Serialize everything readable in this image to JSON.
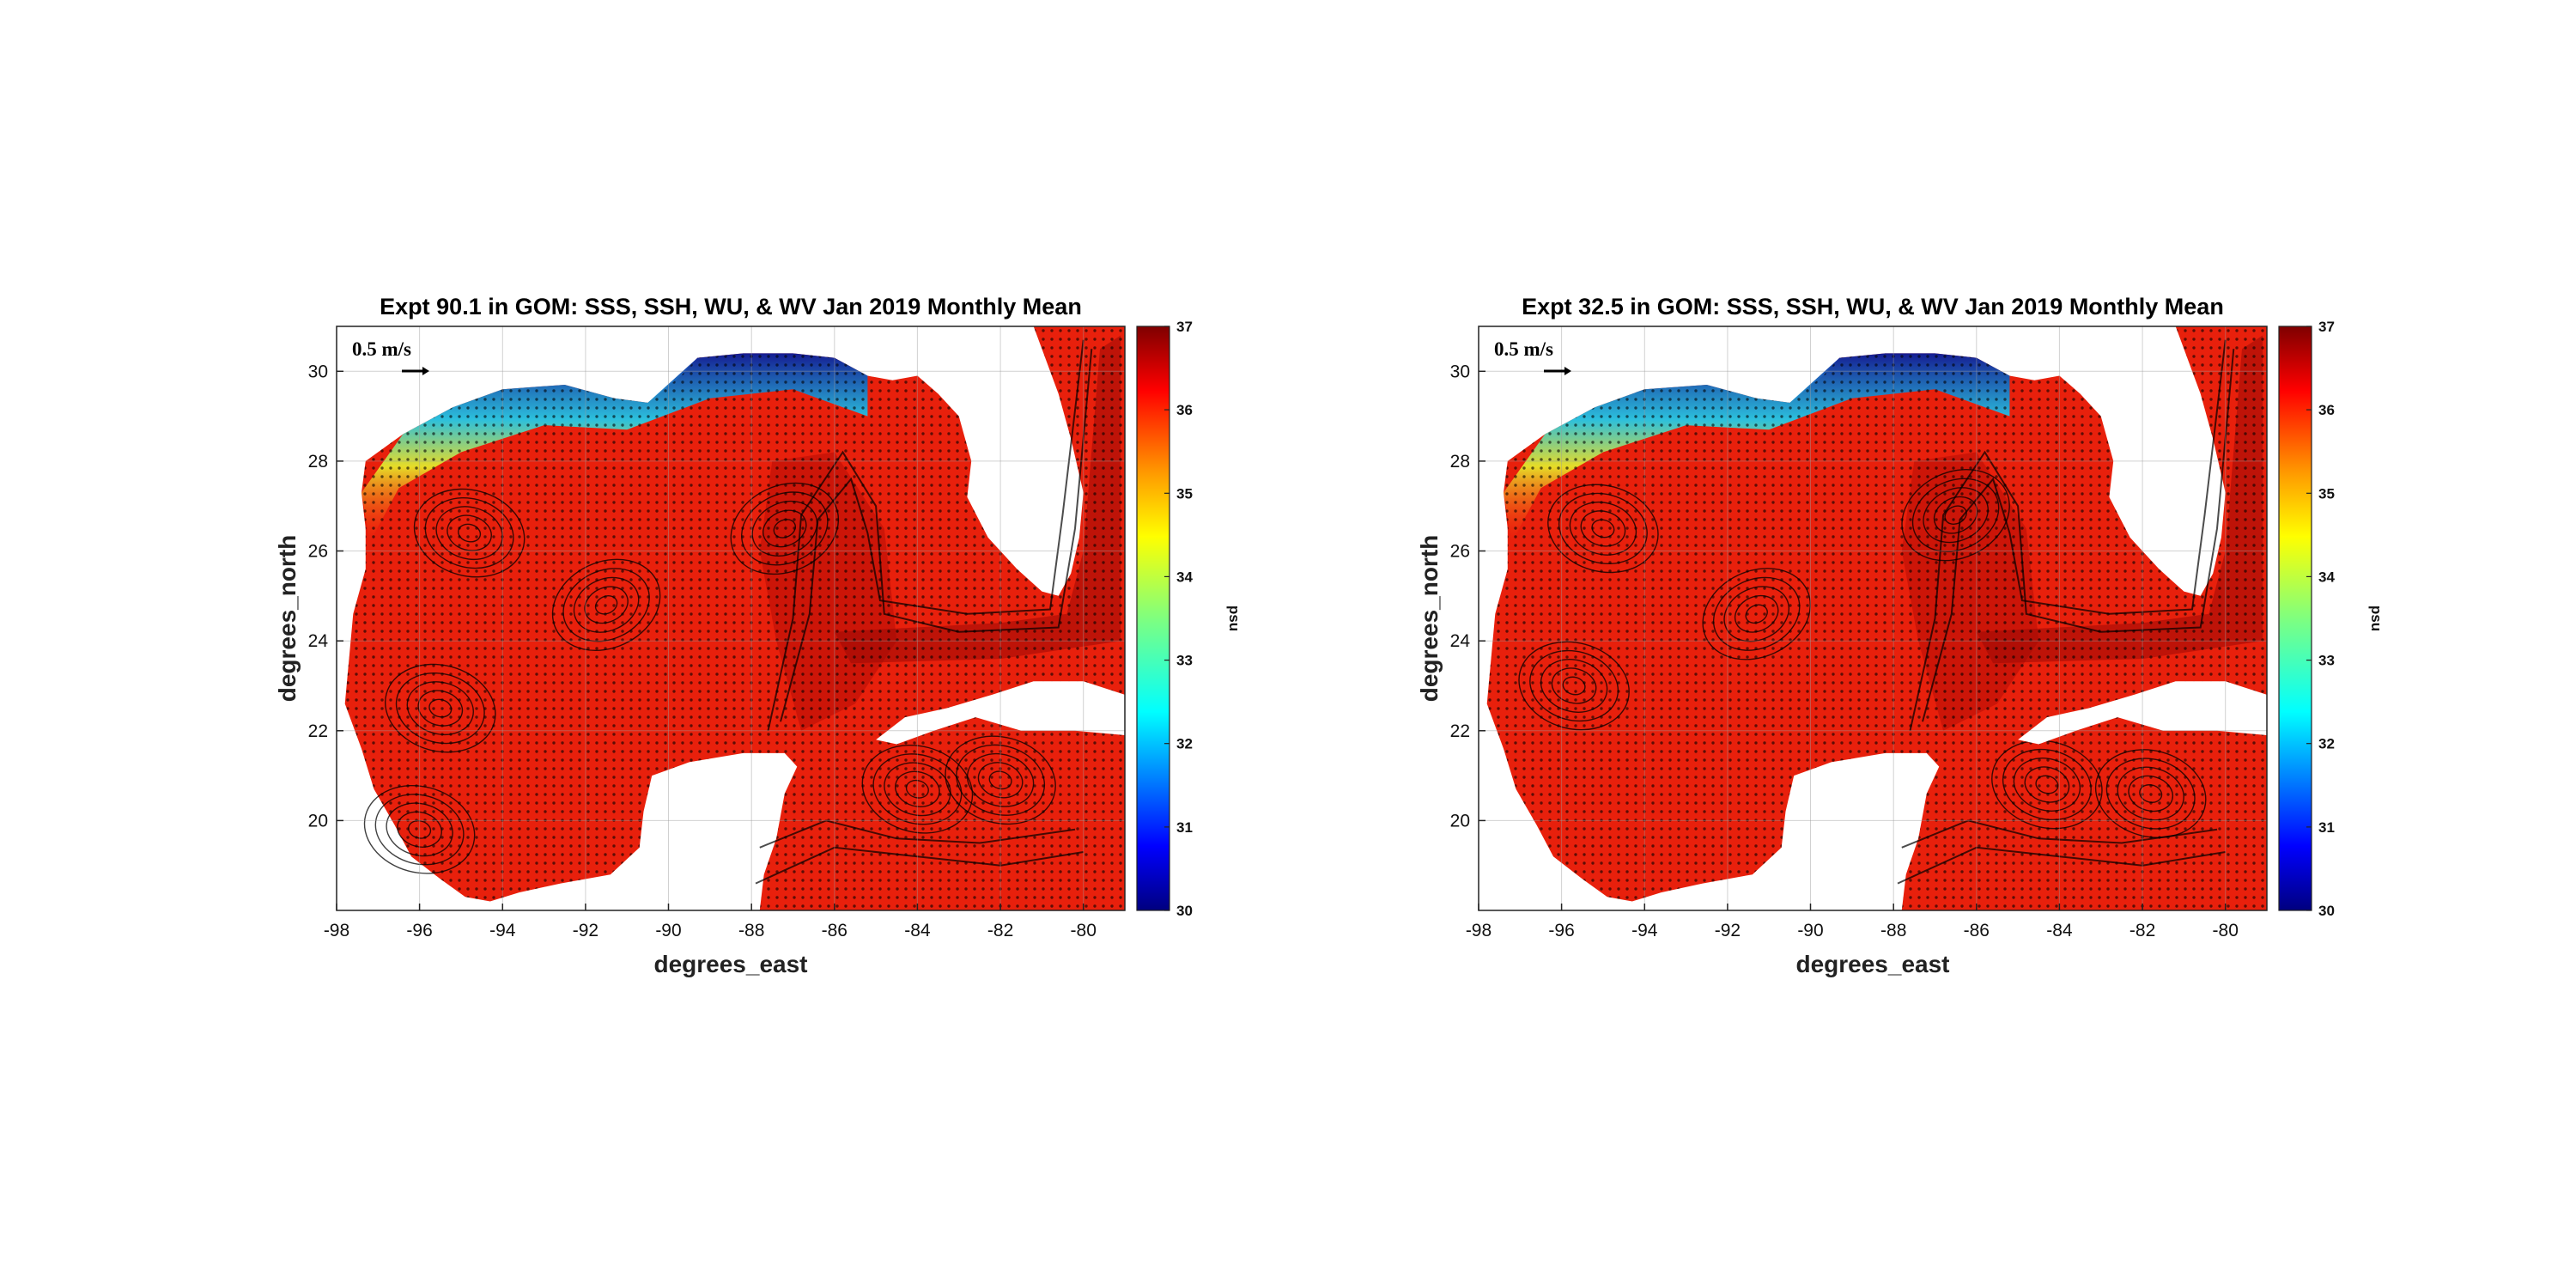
{
  "chart_data": [
    {
      "type": "heatmap",
      "title": "Expt 90.1 in GOM: SSS, SSH, WU, & WV Jan 2019 Monthly Mean",
      "xlabel": "degrees_east",
      "ylabel": "degrees_north",
      "xlim": [
        -98,
        -79
      ],
      "ylim": [
        18,
        31
      ],
      "xticks": [
        "-98",
        "-96",
        "-94",
        "-92",
        "-90",
        "-88",
        "-86",
        "-84",
        "-82",
        "-80"
      ],
      "yticks": [
        "20",
        "22",
        "24",
        "26",
        "28",
        "30"
      ],
      "grid": true,
      "colorbar": {
        "label": "psu",
        "range": [
          30,
          37
        ],
        "ticks": [
          "30",
          "31",
          "32",
          "33",
          "34",
          "35",
          "36",
          "37"
        ],
        "colormap": "jet"
      },
      "vector_scale_label": "0.5 m/s",
      "eddies": [
        {
          "lon": -91.5,
          "lat": 24.8,
          "kind": "anticyclonic"
        },
        {
          "lon": -95.5,
          "lat": 22.5,
          "kind": "cyclonic"
        },
        {
          "lon": -94.8,
          "lat": 26.4,
          "kind": "cyclonic"
        },
        {
          "lon": -96.0,
          "lat": 19.8,
          "kind": "cyclonic"
        },
        {
          "lon": -84.0,
          "lat": 20.7,
          "kind": "cyclonic"
        },
        {
          "lon": -82.0,
          "lat": 20.9,
          "kind": "cyclonic"
        },
        {
          "lon": -87.2,
          "lat": 26.5,
          "kind": "anticyclonic"
        }
      ]
    },
    {
      "type": "heatmap",
      "title": "Expt 32.5 in GOM: SSS, SSH, WU, & WV Jan 2019 Monthly Mean",
      "xlabel": "degrees_east",
      "ylabel": "degrees_north",
      "xlim": [
        -98,
        -79
      ],
      "ylim": [
        18,
        31
      ],
      "xticks": [
        "-98",
        "-96",
        "-94",
        "-92",
        "-90",
        "-88",
        "-86",
        "-84",
        "-82",
        "-80"
      ],
      "yticks": [
        "20",
        "22",
        "24",
        "26",
        "28",
        "30"
      ],
      "grid": true,
      "colorbar": {
        "label": "psu",
        "range": [
          30,
          37
        ],
        "ticks": [
          "30",
          "31",
          "32",
          "33",
          "34",
          "35",
          "36",
          "37"
        ],
        "colormap": "jet"
      },
      "vector_scale_label": "0.5 m/s",
      "eddies": [
        {
          "lon": -91.3,
          "lat": 24.6,
          "kind": "anticyclonic"
        },
        {
          "lon": -95.7,
          "lat": 23.0,
          "kind": "cyclonic"
        },
        {
          "lon": -95.0,
          "lat": 26.5,
          "kind": "cyclonic"
        },
        {
          "lon": -84.3,
          "lat": 20.8,
          "kind": "cyclonic"
        },
        {
          "lon": -81.8,
          "lat": 20.6,
          "kind": "cyclonic"
        },
        {
          "lon": -86.5,
          "lat": 26.8,
          "kind": "anticyclonic"
        }
      ]
    }
  ]
}
